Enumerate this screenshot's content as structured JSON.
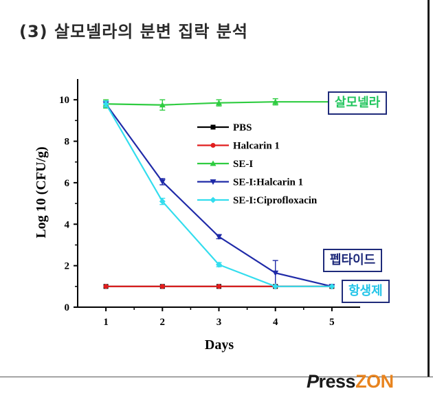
{
  "heading": "(3) 살모넬라의 분변 집락 분석",
  "callouts": {
    "salmonella": "살모넬라",
    "peptide": "펩타이드",
    "antibiotic": "항생제"
  },
  "callout_colors": {
    "salmonella": "#22c55e",
    "peptide": "#1e2a7a",
    "antibiotic": "#22c4e8"
  },
  "logo": {
    "p": "P",
    "ress": "ress",
    "zon": "ZON"
  },
  "chart_data": {
    "type": "line",
    "xlabel": "Days",
    "ylabel": "Log 10 (CFU/g)",
    "x": [
      1,
      2,
      3,
      4,
      5
    ],
    "xlim": [
      0.5,
      5.5
    ],
    "ylim": [
      0,
      11
    ],
    "xticks": [
      1,
      2,
      3,
      4,
      5
    ],
    "yticks": [
      0,
      2,
      4,
      6,
      8,
      10
    ],
    "legend_position": "center",
    "series": [
      {
        "name": "PBS",
        "color": "#000000",
        "marker": "square",
        "values": [
          1.0,
          1.0,
          1.0,
          1.0,
          1.0
        ],
        "errors": [
          0,
          0,
          0,
          0,
          0
        ]
      },
      {
        "name": "Halcarin 1",
        "color": "#e11d1d",
        "marker": "circle",
        "values": [
          1.0,
          1.0,
          1.0,
          1.0,
          1.0
        ],
        "errors": [
          0,
          0,
          0,
          0,
          0
        ]
      },
      {
        "name": "SE-I",
        "color": "#2ecc40",
        "marker": "triangle-up",
        "values": [
          9.8,
          9.75,
          9.85,
          9.9,
          9.9
        ],
        "errors": [
          0.2,
          0.25,
          0.15,
          0.15,
          0.1
        ]
      },
      {
        "name": "SE-I:Halcarin 1",
        "color": "#1f2aa8",
        "marker": "triangle-down",
        "values": [
          9.8,
          6.05,
          3.4,
          1.65,
          1.0
        ],
        "errors": [
          0.15,
          0.15,
          0.1,
          0.6,
          0.05
        ]
      },
      {
        "name": "SE-I:Ciprofloxacin",
        "color": "#33ddee",
        "marker": "diamond",
        "values": [
          9.8,
          5.1,
          2.05,
          1.0,
          1.0
        ],
        "errors": [
          0.15,
          0.15,
          0.1,
          0.05,
          0.05
        ]
      }
    ]
  }
}
